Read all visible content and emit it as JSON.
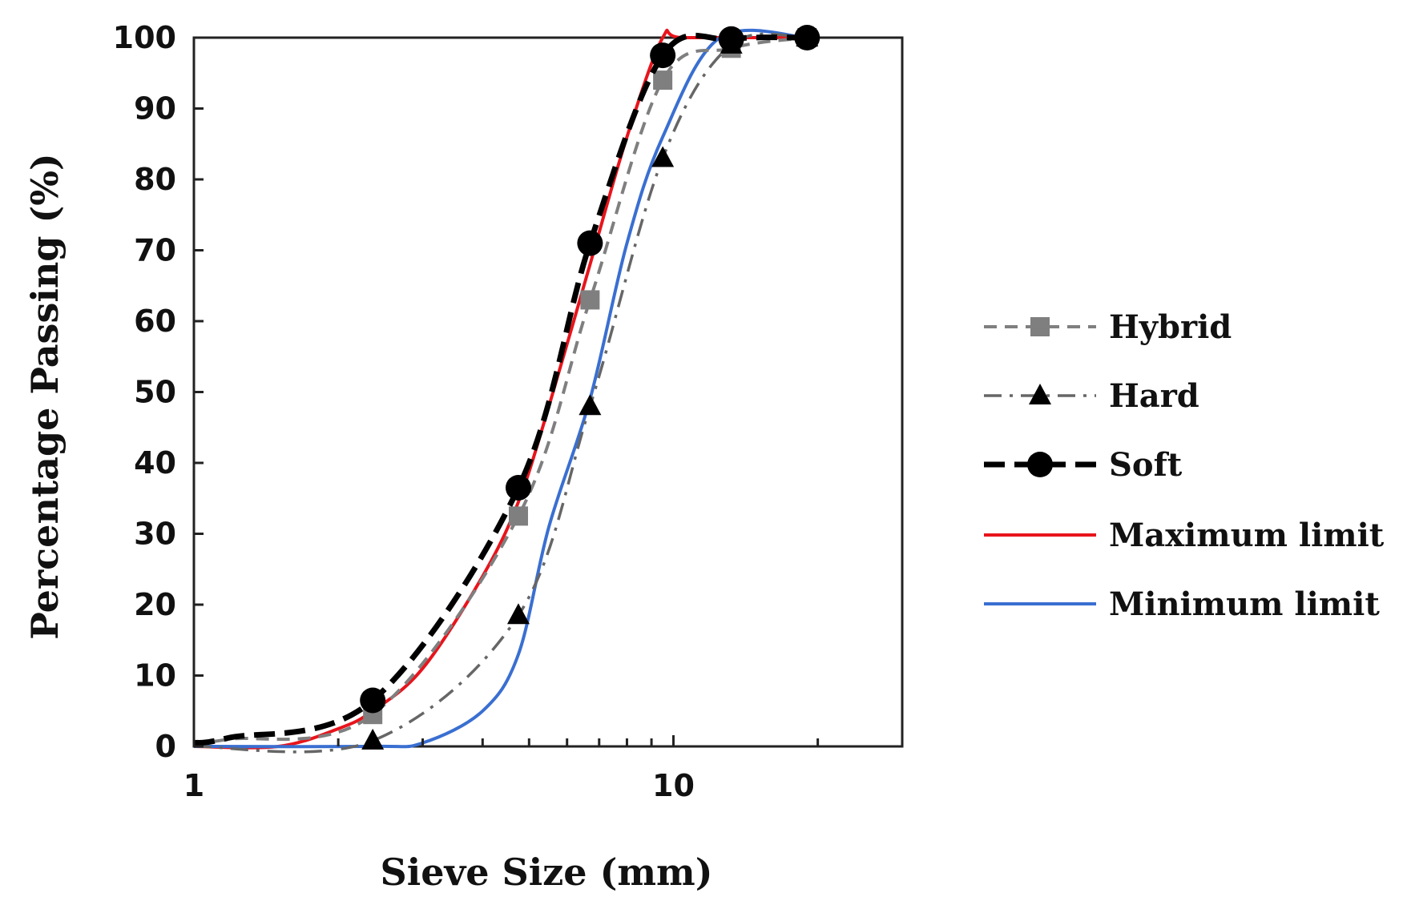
{
  "chart_data": {
    "type": "line",
    "title": "",
    "xlabel": "Sieve Size (mm)",
    "ylabel": "Percentage Passing (%)",
    "xscale": "log",
    "xlim": [
      1,
      30
    ],
    "ylim": [
      0,
      100
    ],
    "xticks": [
      1,
      10
    ],
    "yticks": [
      0,
      10,
      20,
      30,
      40,
      50,
      60,
      70,
      80,
      90,
      100
    ],
    "legend_position": "right",
    "series": [
      {
        "name": "Hybrid",
        "style": "dashed",
        "marker": "square",
        "color": "#7f7f7f",
        "x": [
          1.0,
          1.18,
          2.36,
          4.75,
          6.7,
          9.5,
          13.2,
          19.0
        ],
        "y": [
          0.5,
          1.0,
          4.5,
          32.5,
          63.0,
          94.0,
          98.5,
          100.0
        ],
        "show_markers_at": [
          2.36,
          4.75,
          6.7,
          9.5,
          13.2,
          19.0
        ]
      },
      {
        "name": "Hard",
        "style": "dash-dot",
        "marker": "triangle",
        "color": "#666666",
        "x": [
          1.0,
          2.36,
          4.75,
          6.7,
          9.5,
          13.2,
          19.0
        ],
        "y": [
          0.0,
          0.8,
          18.5,
          48.0,
          83.0,
          99.0,
          100.0
        ],
        "show_markers_at": [
          2.36,
          4.75,
          6.7,
          9.5,
          13.2,
          19.0
        ]
      },
      {
        "name": "Soft",
        "style": "long-dash",
        "marker": "circle",
        "color": "#000000",
        "x": [
          1.0,
          1.18,
          2.36,
          4.75,
          6.7,
          9.5,
          13.2,
          19.0
        ],
        "y": [
          0.5,
          1.2,
          6.5,
          36.5,
          71.0,
          97.5,
          99.8,
          100.0
        ],
        "show_markers_at": [
          2.36,
          4.75,
          6.7,
          9.5,
          13.2,
          19.0
        ]
      },
      {
        "name": "Maximum limit",
        "style": "solid",
        "marker": "none",
        "color": "#e8141c",
        "x": [
          1.0,
          1.5,
          2.0,
          2.36,
          3.0,
          4.0,
          4.75,
          5.5,
          6.7,
          8.0,
          9.5,
          10.5,
          19.0
        ],
        "y": [
          0.0,
          0.0,
          2.5,
          5.0,
          11.0,
          24.0,
          34.5,
          48.0,
          68.0,
          86.0,
          100.0,
          100.0,
          100.0
        ]
      },
      {
        "name": "Minimum limit",
        "style": "solid",
        "marker": "none",
        "color": "#3a6fd1",
        "x": [
          1.0,
          2.36,
          3.0,
          4.0,
          4.75,
          5.5,
          6.7,
          8.0,
          9.5,
          12.5,
          19.0
        ],
        "y": [
          0.0,
          0.0,
          0.5,
          5.0,
          13.0,
          31.0,
          49.0,
          71.0,
          86.0,
          100.0,
          100.0
        ]
      }
    ]
  }
}
